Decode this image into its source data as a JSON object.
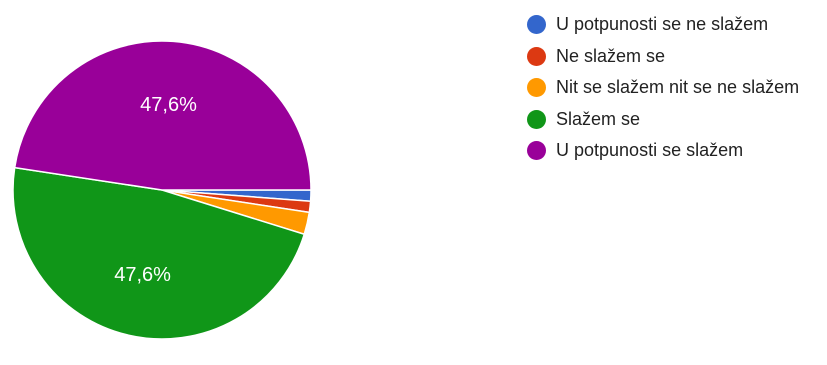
{
  "chart_data": {
    "type": "pie",
    "slices": [
      {
        "label": "U potpunosti se ne slažem",
        "value": 1.2,
        "color": "#3366cc",
        "data_label": ""
      },
      {
        "label": "Ne slažem se",
        "value": 1.2,
        "color": "#dc3912",
        "data_label": ""
      },
      {
        "label": "Nit se slažem nit se ne slažem",
        "value": 2.4,
        "color": "#ff9900",
        "data_label": ""
      },
      {
        "label": "Slažem se",
        "value": 47.6,
        "color": "#109618",
        "data_label": "47,6%"
      },
      {
        "label": "U potpunosti se slažem",
        "value": 47.6,
        "color": "#990099",
        "data_label": "47,6%"
      }
    ],
    "legend_position": "right",
    "start_angle": "3 o'clock, clockwise"
  }
}
